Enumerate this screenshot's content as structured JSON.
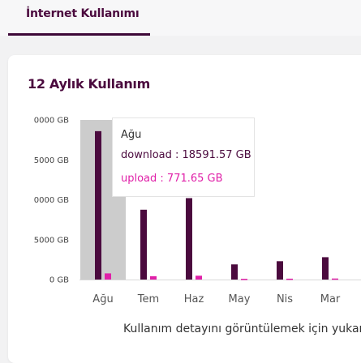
{
  "tab": {
    "label": "İnternet Kullanımı"
  },
  "card": {
    "title": "12 Aylık Kullanım"
  },
  "chart_data": {
    "type": "bar",
    "categories": [
      "Ağu",
      "Tem",
      "Haz",
      "May",
      "Nis",
      "Mar"
    ],
    "y_tick_labels": [
      "0000 GB",
      "5000 GB",
      "0000 GB",
      "5000 GB",
      "0 GB"
    ],
    "ylim": [
      0,
      20000
    ],
    "series": [
      {
        "name": "download",
        "color": "#4b0a3e",
        "values": [
          18591.57,
          8750,
          10200,
          1900,
          2300,
          2800
        ]
      },
      {
        "name": "upload",
        "color": "#e020a8",
        "values": [
          771.65,
          420,
          480,
          90,
          110,
          130
        ]
      }
    ],
    "highlighted_category": "Ağu",
    "legend": "none"
  },
  "tooltip": {
    "month": "Ağu",
    "download": "download : 18591.57 GB",
    "upload": "upload : 771.65 GB"
  },
  "footer": {
    "text": "Kullanım detayını görüntülemek için yukarı"
  }
}
